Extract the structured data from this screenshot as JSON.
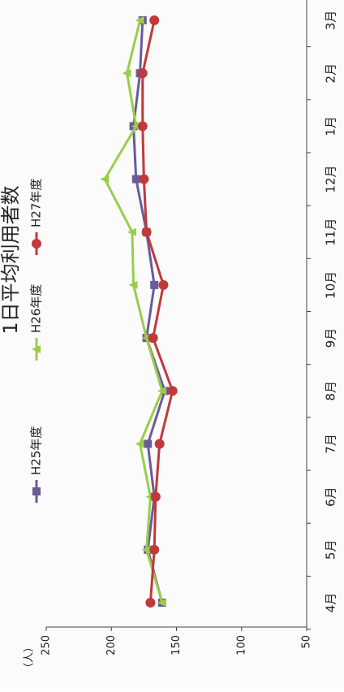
{
  "chart_data": {
    "type": "line",
    "title": "1日平均利用者数",
    "y_axis_label": "（人）",
    "categories": [
      "4月",
      "5月",
      "6月",
      "7月",
      "8月",
      "9月",
      "10月",
      "11月",
      "12月",
      "1月",
      "2月",
      "3月"
    ],
    "series": [
      {
        "name": "H25年度",
        "color": "#6b5b9a",
        "marker": "square",
        "values": [
          161,
          172,
          167,
          172,
          159,
          173,
          167,
          173,
          181,
          183,
          178,
          176
        ]
      },
      {
        "name": "H26年度",
        "color": "#9acd4a",
        "marker": "triangle",
        "values": [
          161,
          173,
          170,
          178,
          161,
          173,
          183,
          184,
          205,
          181,
          188,
          178
        ]
      },
      {
        "name": "H27年度",
        "color": "#c0393b",
        "marker": "circle",
        "values": [
          170,
          167,
          166,
          163,
          153,
          168,
          160,
          173,
          175,
          176,
          176,
          167
        ]
      }
    ],
    "ylim": [
      50,
      250
    ],
    "yticks": [
      50,
      100,
      150,
      200,
      250
    ]
  }
}
